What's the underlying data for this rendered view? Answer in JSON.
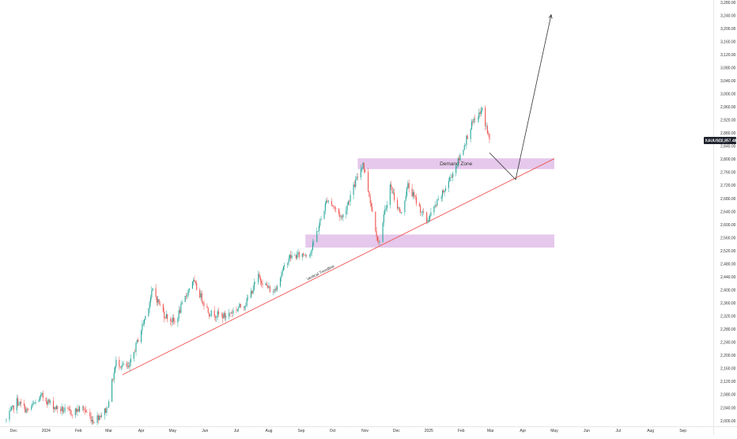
{
  "colors": {
    "up": "#26a69a",
    "down": "#ef5350",
    "zone_fill": "#e1bee7",
    "trendline": "#ef5350",
    "projection": "#333333",
    "badge": "#131722"
  },
  "chart_data": {
    "type": "candlestick",
    "symbol_badge": "XAUUSD",
    "last_price_label": "2,857.48",
    "last_price": 2857.48,
    "ylim": [
      2000,
      3280
    ],
    "y_tick_labels": [
      "2,000.00",
      "2,040.00",
      "2,080.00",
      "2,120.00",
      "2,160.00",
      "2,200.00",
      "2,240.00",
      "2,280.00",
      "2,320.00",
      "2,360.00",
      "2,400.00",
      "2,440.00",
      "2,480.00",
      "2,520.00",
      "2,560.00",
      "2,600.00",
      "2,640.00",
      "2,680.00",
      "2,720.00",
      "2,760.00",
      "2,800.00",
      "2,840.00",
      "2,880.00",
      "2,920.00",
      "2,960.00",
      "3,000.00",
      "3,040.00",
      "3,080.00",
      "3,120.00",
      "3,160.00",
      "3,200.00",
      "3,240.00",
      "3,280.00"
    ],
    "x_axis": {
      "start": "2023-11-24",
      "end": "2025-09-30",
      "tick_labels": [
        {
          "label": "Dec",
          "date": "2023-12-01"
        },
        {
          "label": "2024",
          "date": "2024-01-01"
        },
        {
          "label": "Feb",
          "date": "2024-02-01"
        },
        {
          "label": "Mar",
          "date": "2024-03-01"
        },
        {
          "label": "Apr",
          "date": "2024-04-01"
        },
        {
          "label": "May",
          "date": "2024-05-01"
        },
        {
          "label": "Jun",
          "date": "2024-06-01"
        },
        {
          "label": "Jul",
          "date": "2024-07-01"
        },
        {
          "label": "Aug",
          "date": "2024-08-01"
        },
        {
          "label": "Sep",
          "date": "2024-09-01"
        },
        {
          "label": "Oct",
          "date": "2024-10-01"
        },
        {
          "label": "Nov",
          "date": "2024-11-01"
        },
        {
          "label": "Dec",
          "date": "2024-12-01"
        },
        {
          "label": "2025",
          "date": "2025-01-01"
        },
        {
          "label": "Feb",
          "date": "2025-02-01"
        },
        {
          "label": "Mar",
          "date": "2025-03-01"
        },
        {
          "label": "Apr",
          "date": "2025-04-01"
        },
        {
          "label": "May",
          "date": "2025-05-01"
        },
        {
          "label": "Jun",
          "date": "2025-06-01"
        },
        {
          "label": "Jul",
          "date": "2025-07-01"
        },
        {
          "label": "Aug",
          "date": "2025-08-01"
        },
        {
          "label": "Sep",
          "date": "2025-09-01"
        }
      ]
    },
    "price_path": [
      {
        "date": "2023-11-24",
        "close": 2001
      },
      {
        "date": "2023-12-04",
        "close": 2060
      },
      {
        "date": "2023-12-14",
        "close": 2030
      },
      {
        "date": "2023-12-28",
        "close": 2075
      },
      {
        "date": "2024-01-10",
        "close": 2040
      },
      {
        "date": "2024-01-25",
        "close": 2025
      },
      {
        "date": "2024-02-05",
        "close": 2040
      },
      {
        "date": "2024-02-15",
        "close": 2000
      },
      {
        "date": "2024-02-28",
        "close": 2035
      },
      {
        "date": "2024-03-08",
        "close": 2180
      },
      {
        "date": "2024-03-20",
        "close": 2160
      },
      {
        "date": "2024-04-05",
        "close": 2320
      },
      {
        "date": "2024-04-12",
        "close": 2400
      },
      {
        "date": "2024-04-23",
        "close": 2325
      },
      {
        "date": "2024-05-03",
        "close": 2300
      },
      {
        "date": "2024-05-20",
        "close": 2430
      },
      {
        "date": "2024-06-05",
        "close": 2330
      },
      {
        "date": "2024-06-20",
        "close": 2320
      },
      {
        "date": "2024-07-10",
        "close": 2360
      },
      {
        "date": "2024-07-22",
        "close": 2440
      },
      {
        "date": "2024-08-05",
        "close": 2390
      },
      {
        "date": "2024-08-20",
        "close": 2500
      },
      {
        "date": "2024-09-04",
        "close": 2510
      },
      {
        "date": "2024-09-10",
        "close": 2515
      },
      {
        "date": "2024-09-26",
        "close": 2680
      },
      {
        "date": "2024-10-10",
        "close": 2620
      },
      {
        "date": "2024-10-30",
        "close": 2790
      },
      {
        "date": "2024-11-14",
        "close": 2540
      },
      {
        "date": "2024-11-25",
        "close": 2720
      },
      {
        "date": "2024-12-05",
        "close": 2630
      },
      {
        "date": "2024-12-12",
        "close": 2720
      },
      {
        "date": "2024-12-30",
        "close": 2610
      },
      {
        "date": "2025-01-15",
        "close": 2700
      },
      {
        "date": "2025-01-30",
        "close": 2800
      },
      {
        "date": "2025-02-10",
        "close": 2900
      },
      {
        "date": "2025-02-21",
        "close": 2950
      },
      {
        "date": "2025-02-28",
        "close": 2857.48
      }
    ],
    "annotations": [
      {
        "type": "zone",
        "label": "Demand Zone",
        "from": "2024-10-25",
        "to": "2025-05-01",
        "y_low": 2770,
        "y_high": 2803
      },
      {
        "type": "zone",
        "label": "",
        "from": "2024-09-05",
        "to": "2025-05-01",
        "y_low": 2530,
        "y_high": 2570
      },
      {
        "type": "trendline",
        "label": "Vertical Trendline",
        "from_date": "2024-03-14",
        "from_price": 2141,
        "to_date": "2025-05-01",
        "to_price": 2802
      },
      {
        "type": "projection",
        "points": [
          {
            "date": "2025-02-28",
            "price": 2820
          },
          {
            "date": "2025-03-25",
            "price": 2738
          },
          {
            "date": "2025-04-28",
            "price": 3242
          }
        ]
      }
    ]
  }
}
